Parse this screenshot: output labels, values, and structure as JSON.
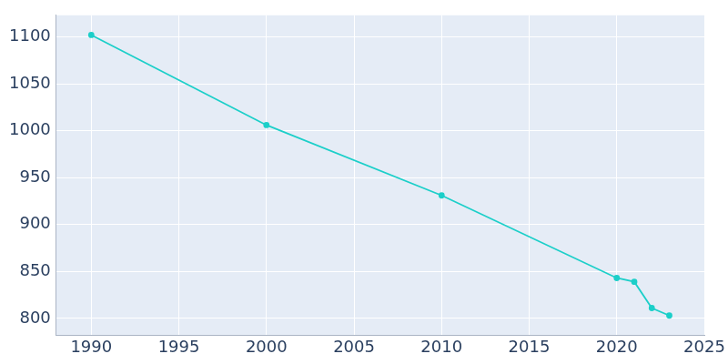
{
  "chart_data": {
    "type": "line",
    "x": [
      1990,
      2000,
      2010,
      2020,
      2021,
      2022,
      2023
    ],
    "values": [
      1102,
      1006,
      931,
      843,
      839,
      811,
      803
    ],
    "color": "#1ccfc9",
    "marker": "circle",
    "xlim": [
      1988,
      2025
    ],
    "xticks": [
      1990,
      1995,
      2000,
      2005,
      2010,
      2015,
      2020,
      2025
    ],
    "ylim": [
      782,
      1123
    ],
    "yticks": [
      800,
      850,
      900,
      950,
      1000,
      1050,
      1100
    ],
    "grid": true
  }
}
